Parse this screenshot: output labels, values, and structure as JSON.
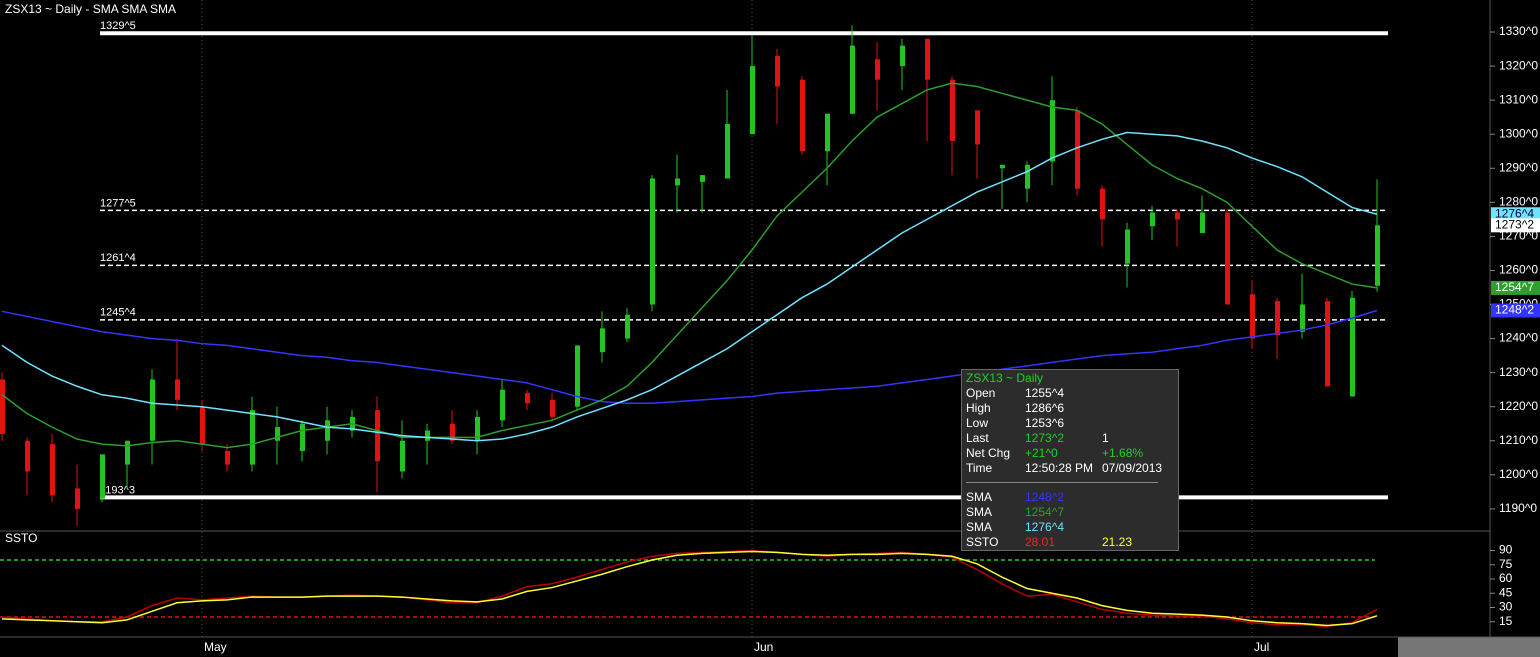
{
  "chart_data": [
    {
      "type": "candlestick",
      "title": "ZSX13 ~ Daily  -  SMA SMA SMA",
      "ylim": [
        1183.8,
        1339.4
      ],
      "yticks": [
        {
          "value": 1330,
          "label": "1330^0"
        },
        {
          "value": 1320,
          "label": "1320^0"
        },
        {
          "value": 1310,
          "label": "1310^0"
        },
        {
          "value": 1300,
          "label": "1300^0"
        },
        {
          "value": 1290,
          "label": "1290^0"
        },
        {
          "value": 1280,
          "label": "1280^0"
        },
        {
          "value": 1270,
          "label": "1270^0"
        },
        {
          "value": 1260,
          "label": "1260^0"
        },
        {
          "value": 1250,
          "label": "1250^0"
        },
        {
          "value": 1240,
          "label": "1240^0"
        },
        {
          "value": 1230,
          "label": "1230^0"
        },
        {
          "value": 1220,
          "label": "1220^0"
        },
        {
          "value": 1210,
          "label": "1210^0"
        },
        {
          "value": 1200,
          "label": "1200^0"
        },
        {
          "value": 1190,
          "label": "1190^0"
        }
      ],
      "xticks": [
        {
          "value": 8,
          "label": "May"
        },
        {
          "value": 30,
          "label": "Jun"
        },
        {
          "value": 50,
          "label": "Jul"
        }
      ],
      "up_color": "#22c322",
      "down_color": "#e01212",
      "open": [
        1228,
        1210,
        1209,
        1196,
        1193,
        1203,
        1210,
        1228,
        1220,
        1207,
        1203,
        1210,
        1207,
        1210,
        1213,
        1219,
        1201,
        1210,
        1215,
        1210,
        1216,
        1224,
        1222,
        1220,
        1236,
        1240,
        1250,
        1285,
        1286,
        1287,
        1300,
        1323,
        1316,
        1295,
        1306,
        1322,
        1320,
        1328,
        1316,
        1307,
        1290,
        1284,
        1292,
        1307,
        1284,
        1262,
        1273,
        1277,
        1271,
        1277,
        1253,
        1251,
        1242,
        1251,
        1223,
        1255.5
      ],
      "high": [
        1230,
        1211,
        1212,
        1203,
        1206,
        1210,
        1231,
        1240,
        1222,
        1209,
        1223,
        1220,
        1216,
        1220,
        1219,
        1223,
        1216,
        1215,
        1219,
        1219,
        1228,
        1225,
        1224,
        1238,
        1248,
        1249,
        1288,
        1294,
        1288,
        1313,
        1329,
        1325,
        1317,
        1306,
        1332,
        1327,
        1328,
        1328,
        1317,
        1307,
        1291,
        1292,
        1317,
        1308,
        1285,
        1274,
        1279,
        1278,
        1282,
        1278,
        1257,
        1252,
        1259,
        1252,
        1254,
        1286.75
      ],
      "low": [
        1210,
        1194,
        1192,
        1185,
        1192,
        1196,
        1203,
        1219,
        1207,
        1201,
        1201,
        1203,
        1204,
        1206,
        1211,
        1195,
        1199,
        1203,
        1209,
        1206,
        1214,
        1219,
        1216,
        1219,
        1233,
        1239,
        1248,
        1277,
        1277,
        1287,
        1300,
        1303,
        1294,
        1285,
        1306,
        1307,
        1313,
        1298,
        1288,
        1287,
        1278,
        1280,
        1285,
        1282,
        1267,
        1255,
        1269,
        1267,
        1271,
        1250,
        1237,
        1234,
        1240,
        1226,
        1223,
        1253.75
      ],
      "close": [
        1212,
        1201,
        1194,
        1190,
        1206,
        1210,
        1228,
        1222,
        1209,
        1203,
        1219,
        1214,
        1215,
        1216,
        1217,
        1204,
        1210,
        1213,
        1210,
        1217,
        1225,
        1221,
        1217,
        1238,
        1243,
        1247,
        1287,
        1287,
        1288,
        1303,
        1320,
        1314,
        1295,
        1306,
        1326,
        1316,
        1326,
        1316,
        1298,
        1297,
        1291,
        1291,
        1310,
        1284,
        1275,
        1272,
        1277,
        1275,
        1277,
        1250,
        1240,
        1241,
        1250,
        1226,
        1252,
        1273.25
      ],
      "series": [
        {
          "color": "#3434ff",
          "values": [
            1248,
            1246.5,
            1245,
            1243.5,
            1242,
            1241,
            1240,
            1239.5,
            1238.5,
            1238,
            1237,
            1236,
            1235,
            1234.5,
            1233.5,
            1233,
            1232,
            1231,
            1230,
            1229,
            1228,
            1227,
            1225,
            1223,
            1221.5,
            1221,
            1221,
            1221.5,
            1222,
            1222.5,
            1223,
            1224,
            1224.5,
            1225,
            1225.5,
            1226,
            1227,
            1228,
            1229,
            1230,
            1231,
            1232,
            1233,
            1234,
            1235,
            1235.5,
            1236,
            1237,
            1238,
            1239.5,
            1240.5,
            1241.5,
            1242.5,
            1244,
            1246,
            1248.25
          ]
        },
        {
          "color": "#2e9e2e",
          "values": [
            1223.5,
            1218,
            1214,
            1210.5,
            1209,
            1208.5,
            1209.5,
            1210,
            1209,
            1208,
            1209,
            1211,
            1213,
            1214,
            1215,
            1213,
            1211,
            1211,
            1211,
            1211,
            1213,
            1214.5,
            1216,
            1219,
            1222,
            1226,
            1233,
            1241,
            1249,
            1257,
            1266,
            1276,
            1283,
            1290,
            1298,
            1305,
            1309,
            1313,
            1315,
            1314,
            1312,
            1310,
            1308,
            1307,
            1303,
            1297,
            1291,
            1287,
            1284,
            1280,
            1273,
            1266,
            1262,
            1259,
            1256,
            1254.875
          ]
        },
        {
          "color": "#6fe3ff",
          "values": [
            1238,
            1233,
            1229,
            1226,
            1223.5,
            1222.5,
            1221,
            1220.5,
            1220,
            1219,
            1218,
            1217,
            1215.5,
            1214,
            1213.5,
            1212.5,
            1211.5,
            1211,
            1210.5,
            1210,
            1210.5,
            1212,
            1214,
            1217,
            1219.5,
            1222,
            1225,
            1229,
            1233,
            1237,
            1242,
            1247,
            1252,
            1256,
            1261,
            1266,
            1271,
            1275,
            1279,
            1283,
            1286,
            1289,
            1293,
            1296,
            1298.5,
            1300.5,
            1300,
            1299.5,
            1298,
            1296,
            1293,
            1290.5,
            1287.5,
            1283,
            1278.5,
            1276.5
          ]
        }
      ],
      "levels": [
        {
          "value": 1329.625,
          "label": "1329^5",
          "style": "solid"
        },
        {
          "value": 1277.625,
          "label": "1277^5",
          "style": "dashed"
        },
        {
          "value": 1261.5,
          "label": "1261^4",
          "style": "dashed"
        },
        {
          "value": 1245.5,
          "label": "1245^4",
          "style": "dashed"
        },
        {
          "value": 1193.375,
          "label": "1193^3",
          "style": "solid"
        }
      ],
      "price_tags": [
        {
          "value": 1276.5,
          "label": "1276^4",
          "color": "#6fe3ff"
        },
        {
          "value": 1273.25,
          "label": "1273^2",
          "color": "#ffffff"
        },
        {
          "value": 1254.875,
          "label": "1254^7",
          "color": "#2e9e2e"
        },
        {
          "value": 1248.25,
          "label": "1248^2",
          "color": "#3434ff"
        }
      ]
    },
    {
      "type": "line",
      "title": "SSTO",
      "ylim": [
        0,
        105.3
      ],
      "yticks": [
        90,
        75,
        60,
        45,
        30,
        15
      ],
      "levels": [
        {
          "value": 80,
          "color": "#22cc22"
        },
        {
          "value": 20,
          "color": "#e01212"
        }
      ],
      "series": [
        {
          "color": "#b80000",
          "values": [
            20,
            18,
            16,
            15,
            15,
            20,
            32,
            40,
            38,
            40,
            42,
            41,
            41,
            42,
            43,
            42,
            41,
            38,
            35,
            35,
            42,
            52,
            55,
            62,
            70,
            78,
            84,
            87,
            88,
            89,
            90,
            88,
            86,
            84,
            86,
            87,
            88,
            86,
            83,
            70,
            55,
            42,
            44,
            36,
            28,
            24,
            22,
            21,
            21,
            18,
            14,
            12,
            12,
            10,
            14,
            28.01
          ]
        },
        {
          "color": "#ffff33",
          "values": [
            18,
            17,
            16,
            15,
            14,
            17,
            26,
            35,
            37,
            38,
            41,
            41,
            41,
            42,
            42,
            42,
            41,
            39,
            37,
            36,
            39,
            47,
            51,
            58,
            65,
            73,
            80,
            85,
            87,
            88,
            89,
            88,
            86,
            85,
            86,
            86,
            87,
            86,
            84,
            76,
            62,
            50,
            45,
            40,
            32,
            27,
            24,
            23,
            22,
            20,
            16,
            14,
            13,
            11,
            13,
            21.23
          ]
        }
      ]
    }
  ],
  "info_box": {
    "title": "ZSX13 ~ Daily",
    "rows": [
      [
        "Open",
        "1255^4"
      ],
      [
        "High",
        "1286^6"
      ],
      [
        "Low",
        "1253^6"
      ],
      [
        "Last",
        "1273^2",
        "1"
      ],
      [
        "Net Chg",
        "+21^0",
        "+1.68%"
      ],
      [
        "Time",
        "12:50:28 PM",
        "07/09/2013"
      ]
    ],
    "studies": [
      [
        "SMA",
        "1248^2"
      ],
      [
        "SMA",
        "1254^7"
      ],
      [
        "SMA",
        "1276^4"
      ],
      [
        "SSTO",
        "28.01",
        "21.23"
      ]
    ]
  }
}
